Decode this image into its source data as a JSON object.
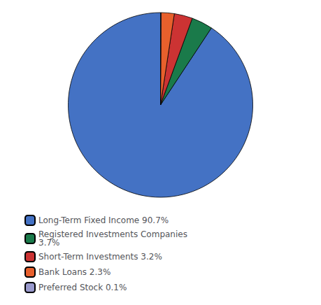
{
  "chart_data": {
    "type": "pie",
    "categories": [
      "Long-Term Fixed Income 90.7%",
      "Registered Investments Companies\n3.7%",
      "Short-Term Investments 3.2%",
      "Bank Loans 2.3%",
      "Preferred Stock 0.1%"
    ],
    "values": [
      90.7,
      3.7,
      3.2,
      2.3,
      0.1
    ],
    "colors": [
      "#4472C4",
      "#1a7a4a",
      "#CC3333",
      "#E8602C",
      "#9999CC"
    ],
    "legend": "lower left"
  }
}
